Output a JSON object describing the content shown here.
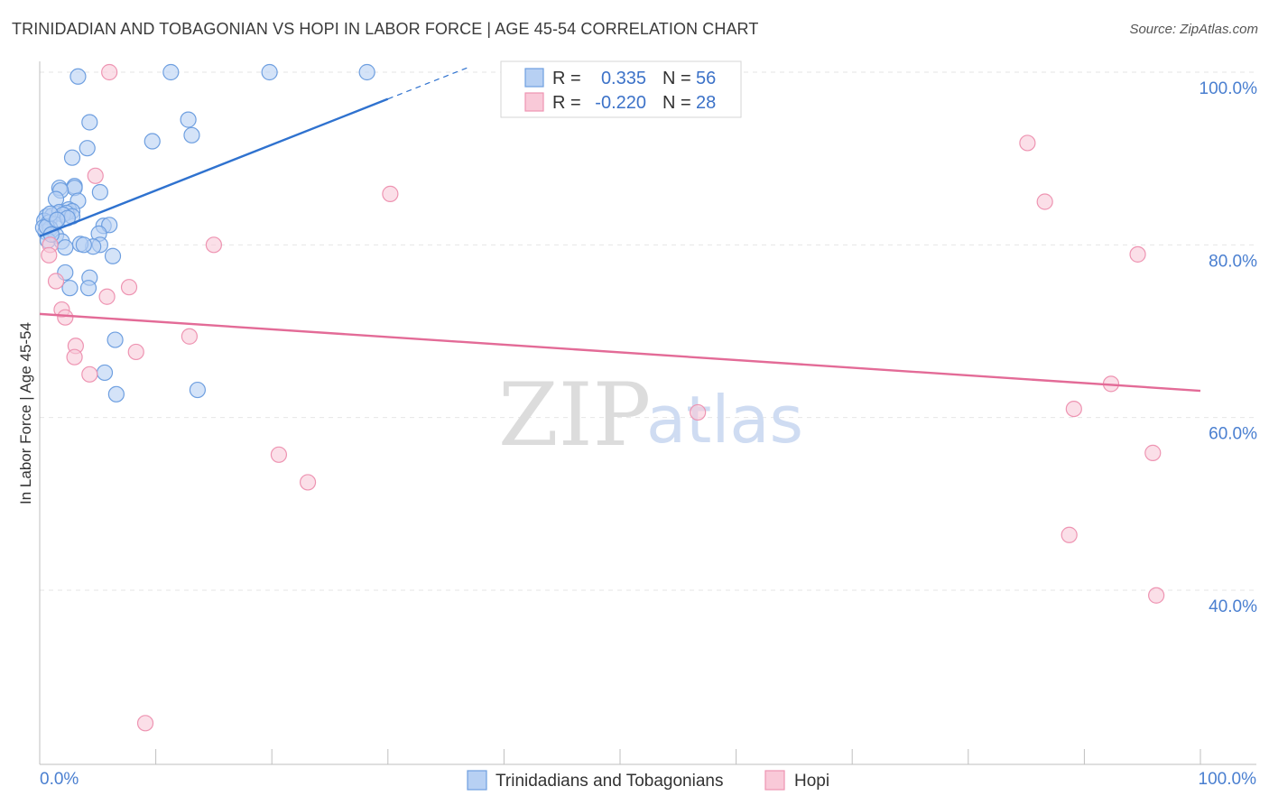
{
  "title": "TRINIDADIAN AND TOBAGONIAN VS HOPI IN LABOR FORCE | AGE 45-54 CORRELATION CHART",
  "source": "Source: ZipAtlas.com",
  "watermark": {
    "zip": "ZIP",
    "atlas": "atlas"
  },
  "colors": {
    "blue_fill": "#b7d0f3",
    "blue_stroke": "#6e9fe0",
    "blue_line": "#2f72cf",
    "pink_fill": "#f9c9d8",
    "pink_stroke": "#ee94b2",
    "pink_line": "#e36b97",
    "grid": "#e6e6e6",
    "tick_text": "#4a7fd0"
  },
  "legend": {
    "rows": [
      {
        "r_label": "R =",
        "r_value": "0.335",
        "n_label": "N =",
        "n_value": "56"
      },
      {
        "r_label": "R =",
        "r_value": "-0.220",
        "n_label": "N =",
        "n_value": "28"
      }
    ]
  },
  "chart_data": {
    "type": "scatter",
    "title": "TRINIDADIAN AND TOBAGONIAN VS HOPI IN LABOR FORCE | AGE 45-54 CORRELATION CHART",
    "xlabel": "",
    "ylabel": "In Labor Force | Age 45-54",
    "xlim": [
      0,
      100
    ],
    "ylim": [
      22,
      102
    ],
    "x_tick_labels": [
      "0.0%",
      "100.0%"
    ],
    "y_ticks": [
      40,
      60,
      80,
      100
    ],
    "y_tick_labels": [
      "40.0%",
      "60.0%",
      "80.0%",
      "100.0%"
    ],
    "legend_position": "top-center",
    "series": [
      {
        "name": "Trinidadians and Tobagonians",
        "color": "blue",
        "R": 0.335,
        "N": 56,
        "trend": {
          "x0": 0.0,
          "y0": 81.0,
          "x1": 30.0,
          "y1": 96.9,
          "dashed_to_x": 37.0,
          "dashed_to_y": 100.6
        },
        "points": [
          [
            3.3,
            99.5
          ],
          [
            11.3,
            100
          ],
          [
            19.8,
            100
          ],
          [
            28.2,
            100
          ],
          [
            4.3,
            94.2
          ],
          [
            12.8,
            94.5
          ],
          [
            13.1,
            92.7
          ],
          [
            9.7,
            92.0
          ],
          [
            4.1,
            91.2
          ],
          [
            2.8,
            90.1
          ],
          [
            1.7,
            86.6
          ],
          [
            3.0,
            86.8
          ],
          [
            3.0,
            86.6
          ],
          [
            1.8,
            86.3
          ],
          [
            5.2,
            86.1
          ],
          [
            1.4,
            85.3
          ],
          [
            3.3,
            85.1
          ],
          [
            0.6,
            83.3
          ],
          [
            1.1,
            83.4
          ],
          [
            1.7,
            83.8
          ],
          [
            2.5,
            84.1
          ],
          [
            2.8,
            83.9
          ],
          [
            2.3,
            83.7
          ],
          [
            2.0,
            83.5
          ],
          [
            2.8,
            83.3
          ],
          [
            0.4,
            82.8
          ],
          [
            0.8,
            82.6
          ],
          [
            1.3,
            82.4
          ],
          [
            5.5,
            82.2
          ],
          [
            6.0,
            82.3
          ],
          [
            0.5,
            81.5
          ],
          [
            0.9,
            81.9
          ],
          [
            1.4,
            81.1
          ],
          [
            5.1,
            81.3
          ],
          [
            0.7,
            80.5
          ],
          [
            1.9,
            80.4
          ],
          [
            2.2,
            79.7
          ],
          [
            5.2,
            80.0
          ],
          [
            4.6,
            79.8
          ],
          [
            3.5,
            80.1
          ],
          [
            3.8,
            80.0
          ],
          [
            6.3,
            78.7
          ],
          [
            2.2,
            76.8
          ],
          [
            4.3,
            76.2
          ],
          [
            2.6,
            75.0
          ],
          [
            4.2,
            75.0
          ],
          [
            6.5,
            69.0
          ],
          [
            5.6,
            65.2
          ],
          [
            6.6,
            62.7
          ],
          [
            13.6,
            63.2
          ],
          [
            0.3,
            82.0
          ],
          [
            0.6,
            82.1
          ],
          [
            1.0,
            81.2
          ],
          [
            2.4,
            83.1
          ],
          [
            0.9,
            83.6
          ],
          [
            1.5,
            82.9
          ]
        ]
      },
      {
        "name": "Hopi",
        "color": "pink",
        "R": -0.22,
        "N": 28,
        "trend": {
          "x0": 0.0,
          "y0": 72.0,
          "x1": 100.0,
          "y1": 63.1
        },
        "points": [
          [
            6.0,
            100
          ],
          [
            4.8,
            88.0
          ],
          [
            15.0,
            80.0
          ],
          [
            0.9,
            80.0
          ],
          [
            0.8,
            78.8
          ],
          [
            1.4,
            75.8
          ],
          [
            7.7,
            75.1
          ],
          [
            5.8,
            74.0
          ],
          [
            1.9,
            72.5
          ],
          [
            2.2,
            71.6
          ],
          [
            12.9,
            69.4
          ],
          [
            3.1,
            68.3
          ],
          [
            8.3,
            67.6
          ],
          [
            3.0,
            67.0
          ],
          [
            4.3,
            65.0
          ],
          [
            30.2,
            85.9
          ],
          [
            56.7,
            60.6
          ],
          [
            20.6,
            55.7
          ],
          [
            23.1,
            52.5
          ],
          [
            9.1,
            24.6
          ],
          [
            85.1,
            91.8
          ],
          [
            86.6,
            85.0
          ],
          [
            94.6,
            78.9
          ],
          [
            92.3,
            63.9
          ],
          [
            89.1,
            61.0
          ],
          [
            95.9,
            55.9
          ],
          [
            88.7,
            46.4
          ],
          [
            96.2,
            39.4
          ]
        ]
      }
    ]
  },
  "bottom_legend": [
    {
      "label": "Trinidadians and Tobagonians",
      "color": "blue"
    },
    {
      "label": "Hopi",
      "color": "pink"
    }
  ]
}
